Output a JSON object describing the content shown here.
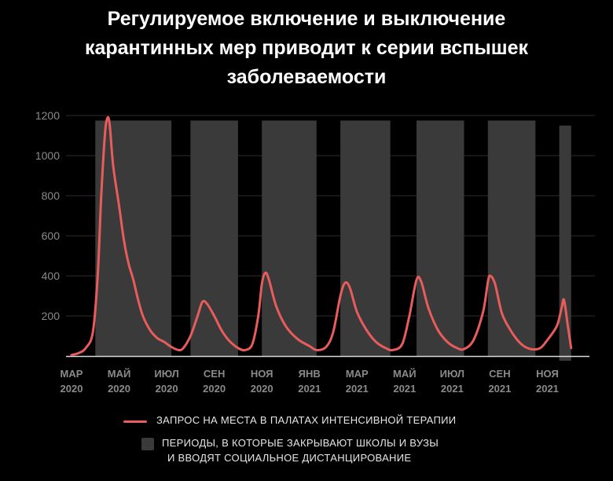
{
  "title_lines": [
    "Регулируемое включение и выключение",
    "карантинных мер приводит к серии вспышек",
    "заболеваемости"
  ],
  "colors": {
    "background": "#000000",
    "line": "#e85c5c",
    "shade": "#3a3a3a",
    "grid": "#2b2b2b",
    "axis_text": "#8a8a8a",
    "baseline": "#d9d9d9"
  },
  "legend": {
    "line_label": "ЗАПРОС НА МЕСТА В ПАЛАТАХ ИНТЕНСИВНОЙ ТЕРАПИИ",
    "shade_label_line1": "ПЕРИОДЫ, В КОТОРЫЕ ЗАКРЫВАЮТ ШКОЛЫ И ВУЗЫ",
    "shade_label_line2": "И ВВОДЯТ СОЦИАЛЬНОЕ ДИСТАНЦИРОВАНИЕ"
  },
  "chart_data": {
    "type": "line",
    "title": "Регулируемое включение и выключение карантинных мер приводит к серии вспышек заболеваемости",
    "x_unit": "months since МАР 2020",
    "xlim": [
      0,
      22
    ],
    "ylim": [
      0,
      1200
    ],
    "yticks": [
      200,
      400,
      600,
      800,
      1000,
      1200
    ],
    "xticks": [
      {
        "x": 0,
        "month": "МАР",
        "year": "2020"
      },
      {
        "x": 2,
        "month": "МАЙ",
        "year": "2020"
      },
      {
        "x": 4,
        "month": "ИЮЛ",
        "year": "2020"
      },
      {
        "x": 6,
        "month": "СЕН",
        "year": "2020"
      },
      {
        "x": 8,
        "month": "НОЯ",
        "year": "2020"
      },
      {
        "x": 10,
        "month": "ЯНВ",
        "year": "2021"
      },
      {
        "x": 12,
        "month": "МАР",
        "year": "2021"
      },
      {
        "x": 14,
        "month": "МАЙ",
        "year": "2021"
      },
      {
        "x": 16,
        "month": "ИЮЛ",
        "year": "2021"
      },
      {
        "x": 18,
        "month": "СЕН",
        "year": "2021"
      },
      {
        "x": 20,
        "month": "НОЯ",
        "year": "2021"
      }
    ],
    "grid": true,
    "shaded_periods": [
      {
        "start": 1.0,
        "end": 4.2,
        "top": 1175
      },
      {
        "start": 5.0,
        "end": 7.0,
        "top": 1175
      },
      {
        "start": 8.0,
        "end": 10.3,
        "top": 1175
      },
      {
        "start": 11.3,
        "end": 13.4,
        "top": 1175
      },
      {
        "start": 14.5,
        "end": 16.5,
        "top": 1175
      },
      {
        "start": 17.5,
        "end": 19.5,
        "top": 1175
      },
      {
        "start": 20.5,
        "end": 21.0,
        "top": 1150
      }
    ],
    "series": [
      {
        "name": "ЗАПРОС НА МЕСТА В ПАЛАТАХ ИНТЕНСИВНОЙ ТЕРАПИИ",
        "points": [
          [
            0.0,
            5
          ],
          [
            0.3,
            15
          ],
          [
            0.6,
            40
          ],
          [
            0.9,
            120
          ],
          [
            1.1,
            400
          ],
          [
            1.25,
            800
          ],
          [
            1.4,
            1100
          ],
          [
            1.5,
            1185
          ],
          [
            1.6,
            1160
          ],
          [
            1.75,
            950
          ],
          [
            2.0,
            750
          ],
          [
            2.2,
            580
          ],
          [
            2.4,
            460
          ],
          [
            2.6,
            380
          ],
          [
            2.8,
            280
          ],
          [
            3.0,
            200
          ],
          [
            3.3,
            130
          ],
          [
            3.6,
            90
          ],
          [
            3.9,
            70
          ],
          [
            4.2,
            45
          ],
          [
            4.5,
            30
          ],
          [
            4.7,
            40
          ],
          [
            5.0,
            100
          ],
          [
            5.3,
            200
          ],
          [
            5.5,
            270
          ],
          [
            5.7,
            260
          ],
          [
            6.0,
            200
          ],
          [
            6.3,
            130
          ],
          [
            6.6,
            80
          ],
          [
            7.0,
            40
          ],
          [
            7.3,
            30
          ],
          [
            7.6,
            60
          ],
          [
            7.85,
            200
          ],
          [
            8.0,
            360
          ],
          [
            8.15,
            415
          ],
          [
            8.3,
            380
          ],
          [
            8.6,
            250
          ],
          [
            9.0,
            150
          ],
          [
            9.5,
            85
          ],
          [
            10.0,
            50
          ],
          [
            10.3,
            30
          ],
          [
            10.7,
            45
          ],
          [
            11.0,
            120
          ],
          [
            11.3,
            300
          ],
          [
            11.5,
            365
          ],
          [
            11.7,
            340
          ],
          [
            12.0,
            220
          ],
          [
            12.4,
            130
          ],
          [
            12.8,
            70
          ],
          [
            13.2,
            40
          ],
          [
            13.5,
            30
          ],
          [
            13.9,
            60
          ],
          [
            14.2,
            200
          ],
          [
            14.5,
            380
          ],
          [
            14.7,
            370
          ],
          [
            15.0,
            240
          ],
          [
            15.4,
            130
          ],
          [
            15.8,
            70
          ],
          [
            16.2,
            40
          ],
          [
            16.5,
            35
          ],
          [
            16.9,
            80
          ],
          [
            17.3,
            220
          ],
          [
            17.5,
            370
          ],
          [
            17.6,
            400
          ],
          [
            17.8,
            360
          ],
          [
            18.1,
            210
          ],
          [
            18.5,
            120
          ],
          [
            18.9,
            60
          ],
          [
            19.3,
            35
          ],
          [
            19.7,
            40
          ],
          [
            20.0,
            80
          ],
          [
            20.4,
            150
          ],
          [
            20.6,
            240
          ],
          [
            20.7,
            280
          ],
          [
            20.85,
            160
          ],
          [
            21.0,
            40
          ]
        ]
      }
    ]
  }
}
